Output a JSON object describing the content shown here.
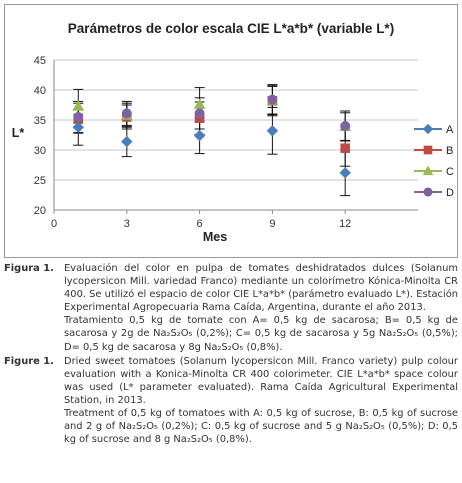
{
  "chart_data": {
    "type": "scatter",
    "title": "Parámetros de color escala CIE L*a*b* (variable L*)",
    "xlabel": "Mes",
    "ylabel": "L*",
    "xlim": [
      0,
      15
    ],
    "ylim": [
      20,
      45
    ],
    "xticks": [
      0,
      3,
      6,
      9,
      12
    ],
    "yticks": [
      20,
      25,
      30,
      35,
      40,
      45
    ],
    "grid": "horizontal",
    "legend_position": "right",
    "x": [
      1,
      3,
      6,
      9,
      12
    ],
    "series": [
      {
        "name": "A",
        "color": "#4a7ebb",
        "marker": "diamond",
        "values": [
          33.8,
          31.4,
          32.4,
          33.2,
          26.2
        ],
        "error": [
          3.0,
          2.5,
          3.0,
          3.9,
          3.8
        ]
      },
      {
        "name": "B",
        "color": "#be4b48",
        "marker": "square",
        "values": [
          35.3,
          35.5,
          35.3,
          38.2,
          30.3
        ],
        "error": [
          2.5,
          2.0,
          2.7,
          2.5,
          3.0
        ]
      },
      {
        "name": "C",
        "color": "#98b954",
        "marker": "triangle",
        "values": [
          37.3,
          35.8,
          37.6,
          38.3,
          33.9
        ],
        "error": [
          2.8,
          2.0,
          2.8,
          2.3,
          2.3
        ]
      },
      {
        "name": "D",
        "color": "#7e63a1",
        "marker": "circle",
        "values": [
          35.5,
          36.1,
          36.1,
          38.4,
          34.0
        ],
        "error": [
          2.6,
          2.0,
          2.6,
          2.5,
          2.5
        ]
      }
    ]
  },
  "captions": [
    {
      "label": "Figura 1.",
      "paragraphs": [
        "Evaluación del color en pulpa de tomates deshidratados dulces (Solanum lycopersicon Mill. variedad Franco) mediante un colorímetro Kónica-Minolta CR 400. Se utilizó el espacio de color CIE L*a*b* (parámetro evaluado L*). Estación Experimental Agropecuaria Rama Caída, Argentina, durante el año 2013.",
        "Tratamiento 0,5 kg de tomate con A= 0,5 kg de sacarosa; B= 0,5 kg de sacarosa y 2g de Na₂S₂O₅ (0,2%); C= 0,5 kg de sacarosa y 5g Na₂S₂O₅ (0,5%); D= 0,5 kg de sacarosa y 8g Na₂S₂O₅ (0,8%)."
      ]
    },
    {
      "label": "Figure 1.",
      "paragraphs": [
        "Dried sweet tomatoes (Solanum lycopersicon Mill. Franco variety) pulp colour evaluation with a Konica-Minolta CR 400 colorimeter. CIE L*a*b* space colour was used (L* parameter evaluated). Rama Caída Agricultural Experimental Station, in 2013.",
        "Treatment of 0,5 kg of tomatoes with A: 0,5 kg of sucrose, B: 0,5 kg of sucrose and 2 g of Na₂S₂O₅ (0,2%); C: 0,5 kg of sucrose and 5 g Na₂S₂O₅ (0,5%); D: 0,5 kg of sucrose and 8 g Na₂S₂O₅ (0,8%)."
      ]
    }
  ]
}
